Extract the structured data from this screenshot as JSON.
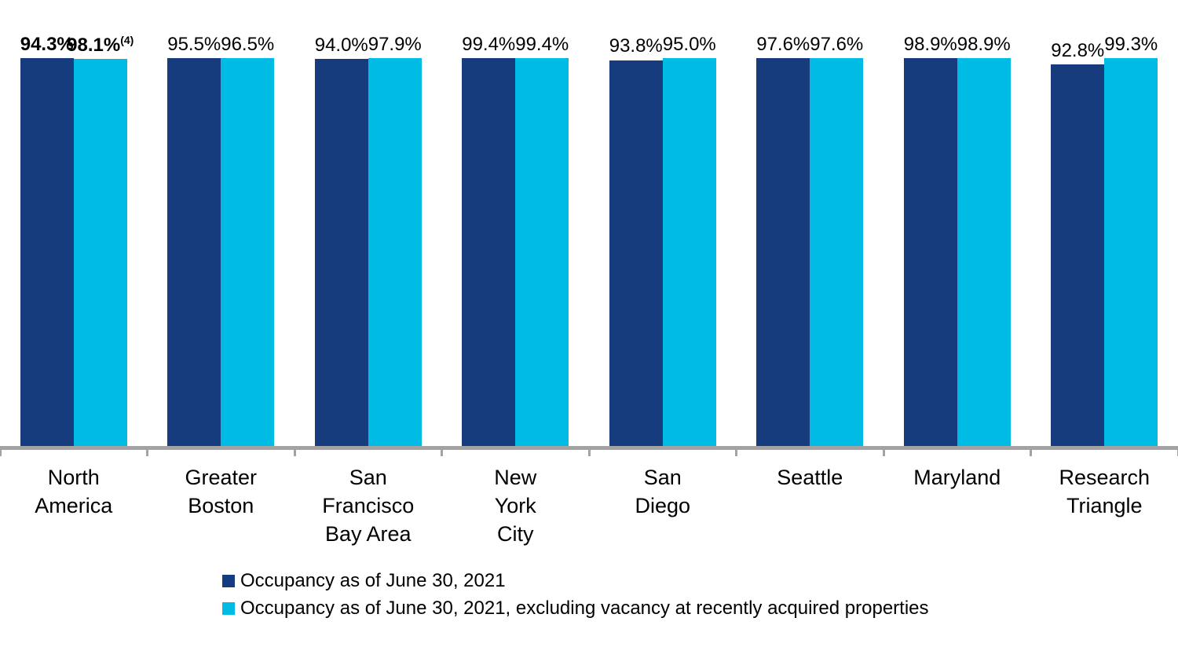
{
  "chart_data": {
    "type": "bar",
    "title": "",
    "categories": [
      "North\nAmerica",
      "Greater\nBoston",
      "San\nFrancisco\nBay Area",
      "New\nYork\nCity",
      "San\nDiego",
      "Seattle",
      "Maryland",
      "Research\nTriangle"
    ],
    "series": [
      {
        "name": "Occupancy as of June 30, 2021",
        "color": "#163c7d",
        "values": [
          94.3,
          95.5,
          94.0,
          99.4,
          93.8,
          97.6,
          98.9,
          92.8
        ],
        "labels": [
          "94.3%",
          "95.5%",
          "94.0%",
          "99.4%",
          "93.8%",
          "97.6%",
          "98.9%",
          "92.8%"
        ]
      },
      {
        "name": "Occupancy as of June 30, 2021, excluding vacancy at recently acquired properties",
        "color": "#00bce4",
        "values": [
          98.1,
          96.5,
          97.9,
          99.4,
          95.0,
          97.6,
          98.9,
          99.3
        ],
        "labels": [
          "98.1%",
          "96.5%",
          "97.9%",
          "99.4%",
          "95.0%",
          "97.6%",
          "98.9%",
          "99.3%"
        ]
      }
    ],
    "footnote": {
      "marker": "(4)",
      "series_index": 1,
      "category_index": 0
    },
    "emphasized_category_index": 0,
    "ylim": [
      0,
      100
    ],
    "xlabel": "",
    "ylabel": "",
    "grid": false,
    "legend_position": "bottom-left"
  },
  "legend": {
    "items": [
      {
        "label": "Occupancy as of June 30, 2021",
        "color": "#163c7d"
      },
      {
        "label": "Occupancy as of June 30, 2021, excluding vacancy at recently acquired properties",
        "color": "#00bce4"
      }
    ]
  }
}
